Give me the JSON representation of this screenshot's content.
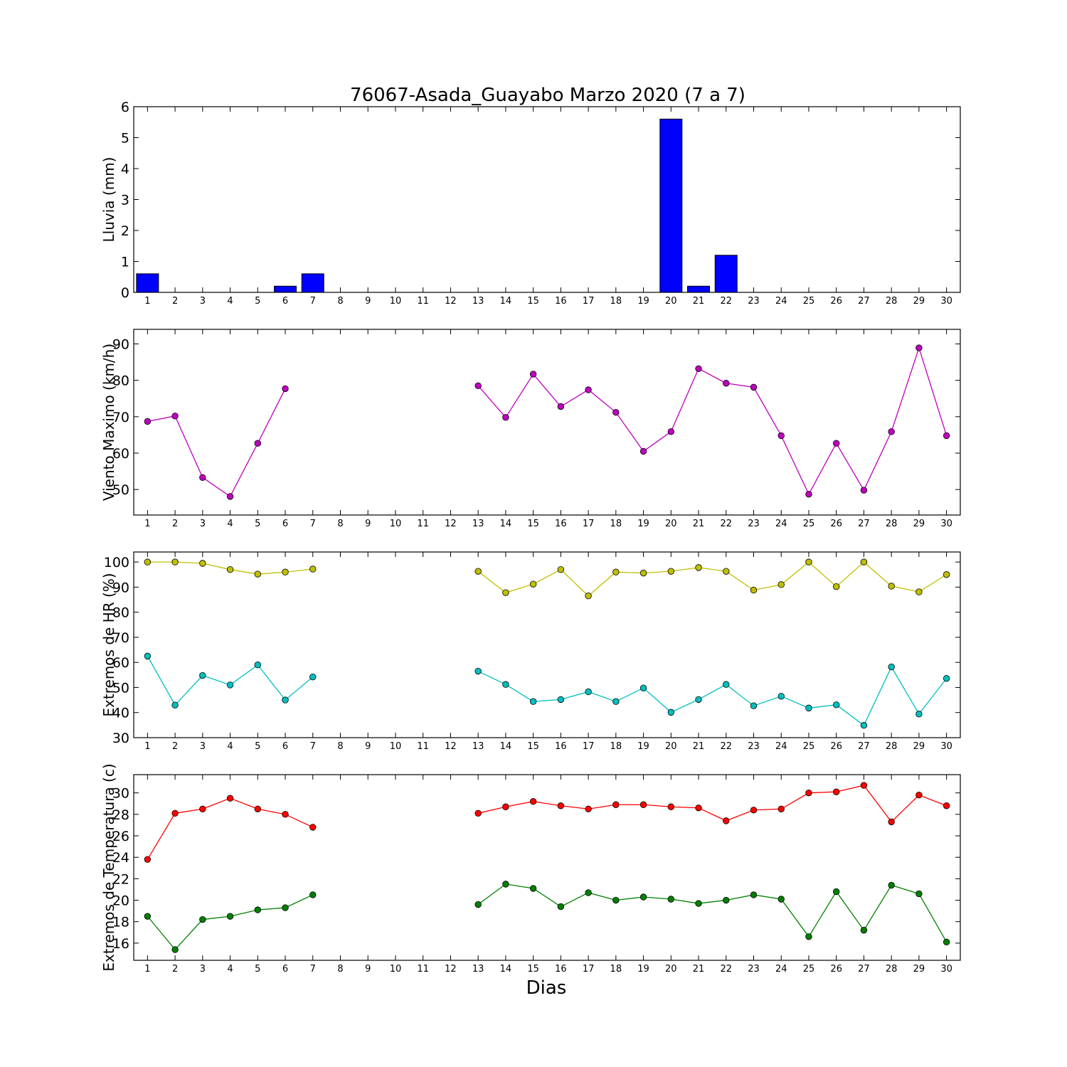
{
  "figure": {
    "title": "76067-Asada_Guayabo Marzo 2020  (7 a 7)",
    "xlabel": "Dias"
  },
  "chart_data": [
    {
      "type": "bar",
      "ylabel": "Lluvia (mm)",
      "ylim": [
        0,
        6
      ],
      "yticks": [
        0,
        1,
        2,
        3,
        4,
        5,
        6
      ],
      "categories": [
        1,
        2,
        3,
        4,
        5,
        6,
        7,
        8,
        9,
        10,
        11,
        12,
        13,
        14,
        15,
        16,
        17,
        18,
        19,
        20,
        21,
        22,
        23,
        24,
        25,
        26,
        27,
        28,
        29,
        30
      ],
      "series": [
        {
          "color": "#0000ff",
          "values": [
            0.6,
            0,
            0,
            0,
            0,
            0.2,
            0.6,
            0,
            0,
            0,
            0,
            0,
            0,
            0,
            0,
            0,
            0,
            0,
            0,
            5.6,
            0.2,
            1.2,
            0,
            0,
            0,
            0,
            0,
            0,
            0,
            0
          ]
        }
      ],
      "grid": false
    },
    {
      "type": "line",
      "ylabel": "Viento Maximo (km/h)",
      "ylim": [
        43,
        94
      ],
      "yticks": [
        50,
        60,
        70,
        80,
        90
      ],
      "x": [
        1,
        2,
        3,
        4,
        5,
        6,
        7,
        8,
        9,
        10,
        11,
        12,
        13,
        14,
        15,
        16,
        17,
        18,
        19,
        20,
        21,
        22,
        23,
        24,
        25,
        26,
        27,
        28,
        29,
        30
      ],
      "series": [
        {
          "color": "#bf00bf",
          "values": [
            68.7,
            70.2,
            53.3,
            48.1,
            62.7,
            77.7,
            null,
            null,
            null,
            null,
            null,
            null,
            78.5,
            69.8,
            81.7,
            72.8,
            77.4,
            71.2,
            60.5,
            65.9,
            83.2,
            79.2,
            78.1,
            64.8,
            48.7,
            62.7,
            49.8,
            65.9,
            88.9,
            64.8
          ]
        }
      ],
      "grid": false
    },
    {
      "type": "line",
      "ylabel": "Extremos de HR (%)",
      "ylim": [
        30,
        104
      ],
      "yticks": [
        30,
        40,
        50,
        60,
        70,
        80,
        90,
        100
      ],
      "x": [
        1,
        2,
        3,
        4,
        5,
        6,
        7,
        8,
        9,
        10,
        11,
        12,
        13,
        14,
        15,
        16,
        17,
        18,
        19,
        20,
        21,
        22,
        23,
        24,
        25,
        26,
        27,
        28,
        29,
        30
      ],
      "series": [
        {
          "color": "#bfbf00",
          "values": [
            100,
            100,
            99.5,
            97,
            95.2,
            96,
            97.2,
            null,
            null,
            null,
            null,
            null,
            96.3,
            87.8,
            91.2,
            97,
            86.5,
            96,
            95.6,
            96.3,
            97.8,
            96.3,
            88.8,
            91,
            100,
            90.2,
            100,
            90.4,
            88.1,
            95
          ]
        },
        {
          "color": "#00bfbf",
          "values": [
            62.5,
            43,
            54.8,
            51,
            59,
            45,
            54.2,
            null,
            null,
            null,
            null,
            null,
            56.5,
            51.2,
            44.4,
            45.2,
            48.3,
            44.4,
            49.8,
            40.1,
            45.2,
            51.2,
            42.7,
            46.5,
            41.8,
            43.1,
            34.9,
            58.2,
            39.4,
            53.6
          ]
        }
      ],
      "grid": false
    },
    {
      "type": "line",
      "ylabel": "Extremos de Temperatura (c)",
      "ylim": [
        14.4,
        31.7
      ],
      "yticks": [
        16,
        18,
        20,
        22,
        24,
        26,
        28,
        30
      ],
      "x": [
        1,
        2,
        3,
        4,
        5,
        6,
        7,
        8,
        9,
        10,
        11,
        12,
        13,
        14,
        15,
        16,
        17,
        18,
        19,
        20,
        21,
        22,
        23,
        24,
        25,
        26,
        27,
        28,
        29,
        30
      ],
      "series": [
        {
          "color": "#ff0000",
          "values": [
            23.8,
            28.1,
            28.5,
            29.5,
            28.5,
            28,
            26.8,
            null,
            null,
            null,
            null,
            null,
            28.1,
            28.7,
            29.2,
            28.8,
            28.5,
            28.9,
            28.9,
            28.7,
            28.6,
            27.4,
            28.4,
            28.5,
            30,
            30.1,
            30.7,
            27.3,
            29.8,
            28.8
          ]
        },
        {
          "color": "#008000",
          "values": [
            18.5,
            15.4,
            18.2,
            18.5,
            19.1,
            19.3,
            20.5,
            null,
            null,
            null,
            null,
            null,
            19.6,
            21.5,
            21.1,
            19.4,
            20.7,
            20,
            20.3,
            20.1,
            19.7,
            20,
            20.5,
            20.1,
            16.6,
            20.8,
            17.2,
            21.4,
            20.6,
            16.1
          ]
        }
      ],
      "grid": false
    }
  ]
}
